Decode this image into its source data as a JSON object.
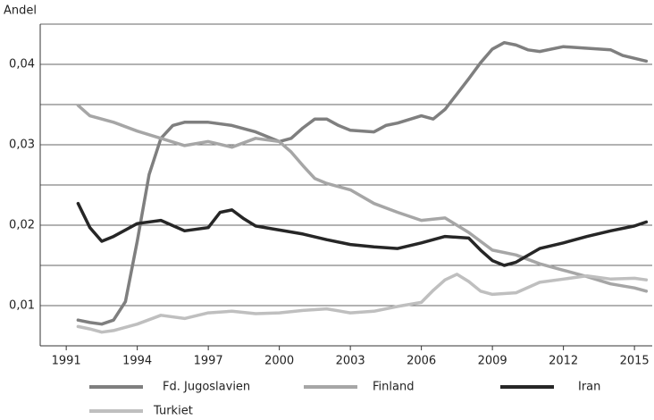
{
  "chart_data": {
    "type": "line",
    "y_label": "Andel",
    "xlim": [
      1989.9,
      2015.75
    ],
    "ylim": [
      0.005,
      0.045
    ],
    "xticks": [
      1991,
      1994,
      1997,
      2000,
      2003,
      2006,
      2009,
      2012,
      2015
    ],
    "yticks": [
      {
        "value": 0.01,
        "label": "0,01"
      },
      {
        "value": 0.02,
        "label": "0,02"
      },
      {
        "value": 0.03,
        "label": "0,03"
      },
      {
        "value": 0.04,
        "label": "0,04"
      }
    ],
    "minor_gridlines": [
      0.015,
      0.025,
      0.035,
      0.045
    ],
    "grid": true,
    "legend": "bottom",
    "series": [
      {
        "name": "Fd. Jugoslavien",
        "color": "#7f7f7f",
        "x": [
          1991.5,
          1992,
          1992.5,
          1993,
          1993.5,
          1994,
          1994.5,
          1995,
          1995.5,
          1996,
          1997,
          1998,
          1999,
          2000,
          2000.5,
          2001,
          2001.5,
          2002,
          2002.5,
          2003,
          2004,
          2004.5,
          2005,
          2006,
          2006.5,
          2007,
          2007.5,
          2008,
          2008.5,
          2009,
          2009.5,
          2010,
          2010.5,
          2011,
          2012,
          2013,
          2014,
          2014.5,
          2015.5
        ],
        "values": [
          0.0082,
          0.0079,
          0.0077,
          0.0082,
          0.0105,
          0.018,
          0.0263,
          0.0308,
          0.0324,
          0.0328,
          0.0328,
          0.0324,
          0.0316,
          0.0304,
          0.0308,
          0.0321,
          0.0332,
          0.0332,
          0.0324,
          0.0318,
          0.0316,
          0.0324,
          0.0327,
          0.0336,
          0.0332,
          0.0344,
          0.0363,
          0.0382,
          0.0402,
          0.0419,
          0.0427,
          0.0424,
          0.0418,
          0.0416,
          0.0422,
          0.042,
          0.0418,
          0.0411,
          0.0404
        ]
      },
      {
        "name": "Finland",
        "color": "#a6a6a6",
        "x": [
          1991.5,
          1992,
          1993,
          1994,
          1995,
          1996,
          1997,
          1998,
          1999,
          2000,
          2000.5,
          2001,
          2001.5,
          2002,
          2003,
          2004,
          2005,
          2006,
          2007,
          2008,
          2009,
          2010,
          2011,
          2012,
          2013,
          2014,
          2015,
          2015.5
        ],
        "values": [
          0.0349,
          0.0336,
          0.0328,
          0.0317,
          0.0308,
          0.0299,
          0.0304,
          0.0297,
          0.0308,
          0.0304,
          0.0291,
          0.0274,
          0.0258,
          0.0252,
          0.0244,
          0.0227,
          0.0216,
          0.0206,
          0.0209,
          0.0191,
          0.0169,
          0.0163,
          0.0152,
          0.0144,
          0.0136,
          0.0127,
          0.0122,
          0.0118
        ]
      },
      {
        "name": "Iran",
        "color": "#262626",
        "x": [
          1991.5,
          1992,
          1992.5,
          1993,
          1994,
          1995,
          1996,
          1997,
          1997.5,
          1998,
          1998.5,
          1999,
          2000,
          2001,
          2002,
          2003,
          2004,
          2005,
          2006,
          2007,
          2008,
          2008.5,
          2009,
          2009.5,
          2010,
          2011,
          2012,
          2013,
          2014,
          2015,
          2015.5
        ],
        "values": [
          0.0227,
          0.0197,
          0.018,
          0.0186,
          0.0202,
          0.0206,
          0.0193,
          0.0197,
          0.0216,
          0.0219,
          0.0208,
          0.0199,
          0.0194,
          0.0189,
          0.0182,
          0.0176,
          0.0173,
          0.0171,
          0.0178,
          0.0186,
          0.0184,
          0.0169,
          0.0156,
          0.015,
          0.0154,
          0.0171,
          0.0178,
          0.0186,
          0.0193,
          0.0199,
          0.0204
        ]
      },
      {
        "name": "Turkiet",
        "color": "#bfbfbf",
        "x": [
          1991.5,
          1992,
          1992.5,
          1993,
          1994,
          1995,
          1996,
          1997,
          1998,
          1999,
          2000,
          2001,
          2002,
          2003,
          2004,
          2005,
          2006,
          2006.5,
          2007,
          2007.5,
          2008,
          2008.5,
          2009,
          2010,
          2011,
          2012,
          2013,
          2014,
          2015,
          2015.5
        ],
        "values": [
          0.0074,
          0.0071,
          0.0067,
          0.0069,
          0.0077,
          0.0088,
          0.0084,
          0.0091,
          0.0093,
          0.009,
          0.0091,
          0.0094,
          0.0096,
          0.0091,
          0.0093,
          0.0099,
          0.0104,
          0.0119,
          0.0132,
          0.0139,
          0.013,
          0.0118,
          0.0114,
          0.0116,
          0.0129,
          0.0133,
          0.0137,
          0.0133,
          0.0134,
          0.0132
        ]
      }
    ]
  }
}
